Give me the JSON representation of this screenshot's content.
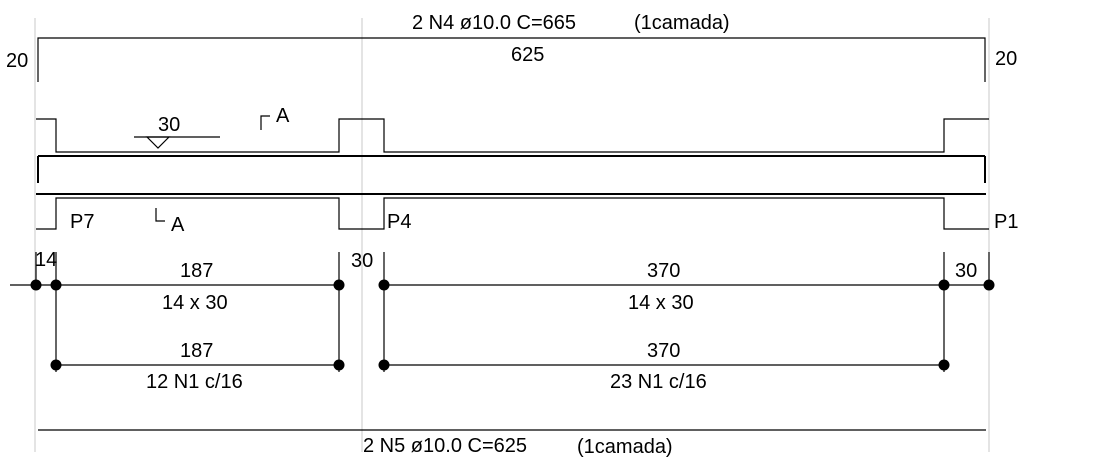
{
  "top_bar": {
    "label": "2 N4 ø10.0  C=665",
    "layer": "(1camada)",
    "length": "625",
    "hook_left": "20",
    "hook_right": "20"
  },
  "beam": {
    "section_cut": "30",
    "cut_label_top": "A",
    "cut_label_bottom": "A",
    "supports": [
      "P7",
      "P4",
      "P1"
    ]
  },
  "stirrup_dims": {
    "left_end": "14",
    "span1_length": "187",
    "span1_section": "14 x 30",
    "middle_support": "30",
    "span2_length": "370",
    "span2_section": "14 x 30",
    "right_end": "30"
  },
  "stirrup_bars": {
    "span1_length": "187",
    "span1_spec": "12 N1 c/16",
    "span2_length": "370",
    "span2_spec": "23 N1 c/16"
  },
  "bottom_bar": {
    "label": "2 N5 ø10.0  C=625",
    "layer": "(1camada)"
  },
  "colors": {
    "line": "#000000",
    "guide": "#c8c8c8",
    "background": "#ffffff"
  }
}
